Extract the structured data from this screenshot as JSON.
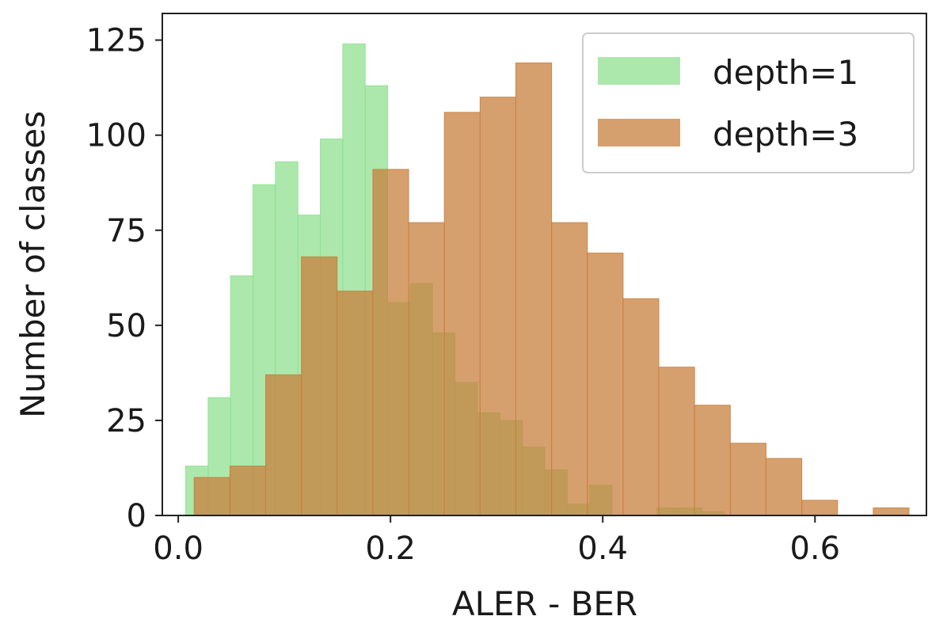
{
  "chart_data": {
    "type": "bar",
    "subtype": "overlapping-histogram",
    "title": "",
    "xlabel": "ALER - BER",
    "ylabel": "Number of classes",
    "xlim": [
      -0.015,
      0.705
    ],
    "ylim": [
      0,
      132
    ],
    "xticks": [
      "0.0",
      "0.2",
      "0.4",
      "0.6"
    ],
    "xtick_values": [
      0.0,
      0.2,
      0.4,
      0.6
    ],
    "yticks": [
      "0",
      "25",
      "50",
      "75",
      "100",
      "125"
    ],
    "ytick_values": [
      0,
      25,
      50,
      75,
      100,
      125
    ],
    "grid": false,
    "legend_position": "top-right",
    "series": [
      {
        "name": "depth=1",
        "color": "#90e090",
        "opacity": 0.75,
        "bin_start": 0.007,
        "bin_width": 0.02115,
        "values": [
          13,
          31,
          63,
          87,
          93,
          79,
          99,
          124,
          113,
          56,
          61,
          48,
          35,
          27,
          25,
          18,
          12,
          3,
          8,
          0,
          0,
          2,
          2,
          1
        ]
      },
      {
        "name": "depth=3",
        "color": "#c8803e",
        "opacity": 0.75,
        "bin_start": 0.015,
        "bin_width": 0.03368,
        "values": [
          10,
          13,
          37,
          68,
          59,
          91,
          77,
          106,
          110,
          119,
          77,
          69,
          57,
          39,
          29,
          19,
          15,
          4,
          0,
          2
        ]
      }
    ]
  }
}
